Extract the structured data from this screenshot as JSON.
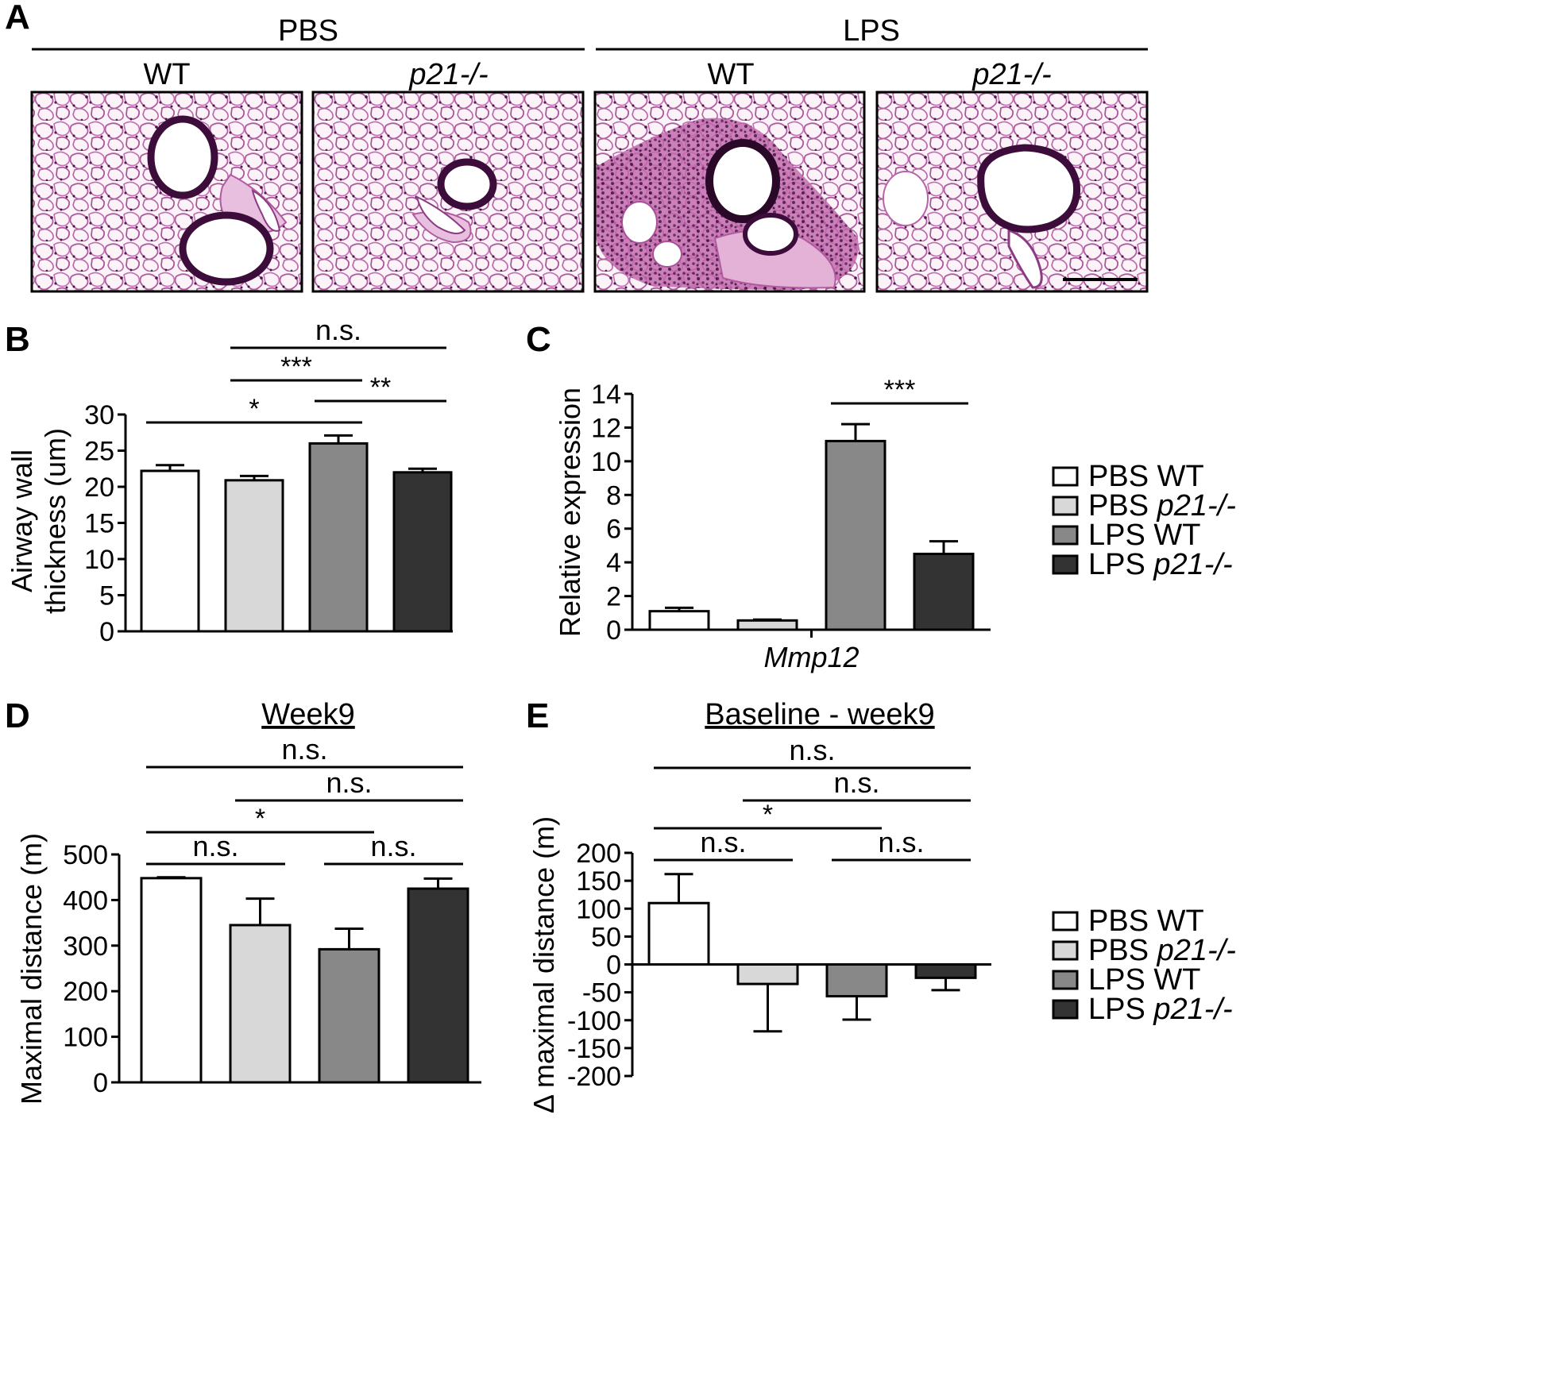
{
  "panelA": {
    "letter": "A",
    "groups": [
      {
        "label": "PBS",
        "subs": [
          {
            "text": "WT",
            "italic": false
          },
          {
            "text": "p21-/-",
            "italic": true
          }
        ]
      },
      {
        "label": "LPS",
        "subs": [
          {
            "text": "WT",
            "italic": false
          },
          {
            "text": "p21-/-",
            "italic": true
          }
        ]
      }
    ]
  },
  "colors": {
    "PBS_WT": "#ffffff",
    "PBS_p21": "#d8d8d8",
    "LPS_WT": "#888888",
    "LPS_p21": "#333333",
    "stain_dark": "#4a1448",
    "stain_pink": "#d07ac0"
  },
  "legend": [
    {
      "group": "PBS",
      "genotype": "WT",
      "italic": false,
      "color": "#ffffff"
    },
    {
      "group": "PBS",
      "genotype": "p21-/-",
      "italic": true,
      "color": "#d8d8d8"
    },
    {
      "group": "LPS",
      "genotype": "WT",
      "italic": false,
      "color": "#888888"
    },
    {
      "group": "LPS",
      "genotype": "p21-/-",
      "italic": true,
      "color": "#333333"
    }
  ],
  "chart_data": [
    {
      "panel": "B",
      "type": "bar",
      "ylabel": [
        "Airway wall",
        "thickness (um)"
      ],
      "xlabel": "",
      "xlabel_italic": false,
      "title": "",
      "ylim": [
        0,
        30
      ],
      "yticks": [
        0,
        5,
        10,
        15,
        20,
        25,
        30
      ],
      "categories": [
        "PBS WT",
        "PBS p21-/-",
        "LPS WT",
        "LPS p21-/-"
      ],
      "values": [
        22.2,
        20.9,
        26.0,
        22.0
      ],
      "errors": [
        0.8,
        0.6,
        1.1,
        0.5
      ],
      "significance": [
        {
          "from": 1,
          "to": 3,
          "label": "n.s."
        },
        {
          "from": 1,
          "to": 2,
          "label": "***"
        },
        {
          "from": 2,
          "to": 3,
          "label": "**"
        },
        {
          "from": 0,
          "to": 2,
          "label": "*"
        }
      ]
    },
    {
      "panel": "C",
      "type": "bar",
      "ylabel": [
        "Relative expression"
      ],
      "xlabel": "Mmp12",
      "xlabel_italic": true,
      "title": "",
      "ylim": [
        0,
        14
      ],
      "yticks": [
        0,
        2,
        4,
        6,
        8,
        10,
        12,
        14
      ],
      "categories": [
        "PBS WT",
        "PBS p21-/-",
        "LPS WT",
        "LPS p21-/-"
      ],
      "values": [
        1.1,
        0.55,
        11.2,
        4.5
      ],
      "errors": [
        0.2,
        0.05,
        1.0,
        0.75
      ],
      "significance": [
        {
          "from": 2,
          "to": 3,
          "label": "***"
        }
      ]
    },
    {
      "panel": "D",
      "type": "bar",
      "ylabel": [
        "Maximal distance (m)"
      ],
      "xlabel": "",
      "xlabel_italic": false,
      "title": "Week9",
      "ylim": [
        0,
        500
      ],
      "yticks": [
        0,
        100,
        200,
        300,
        400,
        500
      ],
      "categories": [
        "PBS WT",
        "PBS p21-/-",
        "LPS WT",
        "LPS p21-/-"
      ],
      "values": [
        448,
        345,
        292,
        425
      ],
      "errors": [
        2,
        58,
        45,
        22
      ],
      "significance": [
        {
          "from": 0,
          "to": 3,
          "label": "n.s."
        },
        {
          "from": 1,
          "to": 3,
          "label": "n.s."
        },
        {
          "from": 0,
          "to": 2,
          "label": "*"
        },
        {
          "from": 0,
          "to": 1,
          "label": "n.s."
        },
        {
          "from": 2,
          "to": 3,
          "label": "n.s."
        }
      ]
    },
    {
      "panel": "E",
      "type": "bar",
      "ylabel": [
        "Δ maximal distance (m)"
      ],
      "xlabel": "",
      "xlabel_italic": false,
      "title": "Baseline - week9",
      "ylim": [
        -200,
        200
      ],
      "yticks": [
        -200,
        -150,
        -100,
        -50,
        0,
        50,
        100,
        150,
        200
      ],
      "categories": [
        "PBS WT",
        "PBS p21-/-",
        "LPS WT",
        "LPS p21-/-"
      ],
      "values": [
        110,
        -35,
        -57,
        -24
      ],
      "errors": [
        52,
        85,
        42,
        22
      ],
      "significance": [
        {
          "from": 0,
          "to": 3,
          "label": "n.s."
        },
        {
          "from": 1,
          "to": 3,
          "label": "n.s."
        },
        {
          "from": 0,
          "to": 2,
          "label": "*"
        },
        {
          "from": 0,
          "to": 1,
          "label": "n.s."
        },
        {
          "from": 2,
          "to": 3,
          "label": "n.s."
        }
      ]
    }
  ]
}
